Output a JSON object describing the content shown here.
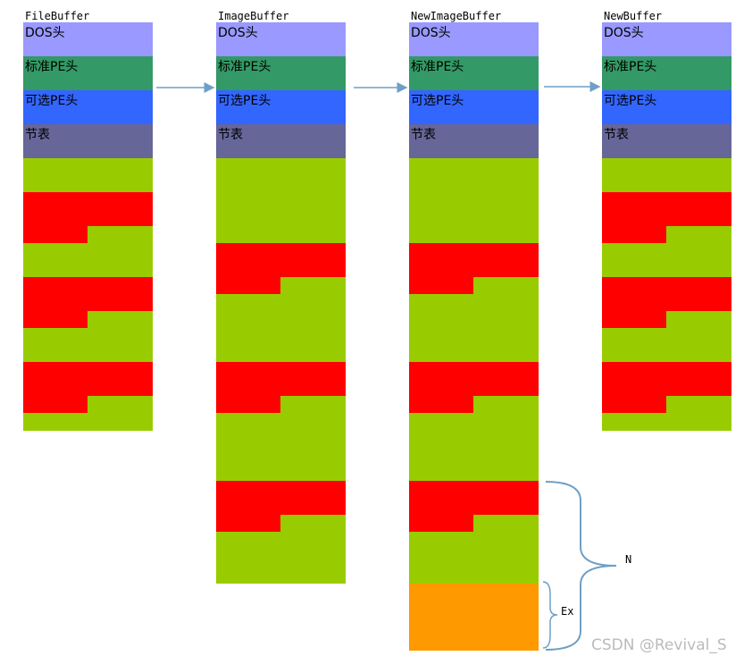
{
  "columns": [
    {
      "title": "FileBuffer",
      "headers": [
        "DOS头",
        "标准PE头",
        "可选PE头",
        "节表"
      ]
    },
    {
      "title": "ImageBuffer",
      "headers": [
        "DOS头",
        "标准PE头",
        "可选PE头",
        "节表"
      ]
    },
    {
      "title": "NewImageBuffer",
      "headers": [
        "DOS头",
        "标准PE头",
        "可选PE头",
        "节表"
      ]
    },
    {
      "title": "NewBuffer",
      "headers": [
        "DOS头",
        "标准PE头",
        "可选PE头",
        "节表"
      ]
    }
  ],
  "annotations": {
    "n": "N",
    "ex": "Ex"
  },
  "watermark": "CSDN @Revival_S"
}
